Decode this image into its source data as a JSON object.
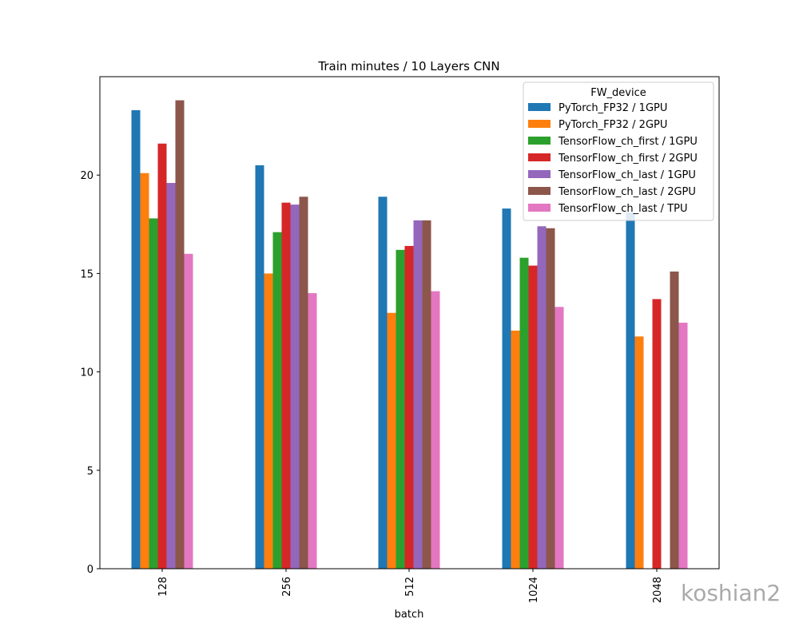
{
  "chart_data": {
    "type": "bar",
    "title": "Train minutes / 10 Layers CNN",
    "xlabel": "batch",
    "ylabel": "",
    "categories": [
      "128",
      "256",
      "512",
      "1024",
      "2048"
    ],
    "ylim": [
      0,
      25
    ],
    "yticks": [
      0,
      5,
      10,
      15,
      20
    ],
    "grid": false,
    "legend_title": "FW_device",
    "legend_position": "top-right",
    "series": [
      {
        "name": "PyTorch_FP32 / 1GPU",
        "color": "#1f77b4",
        "values": [
          23.3,
          20.5,
          18.9,
          18.3,
          18.1
        ]
      },
      {
        "name": "PyTorch_FP32 / 2GPU",
        "color": "#ff7f0e",
        "values": [
          20.1,
          15.0,
          13.0,
          12.1,
          11.8
        ]
      },
      {
        "name": "TensorFlow_ch_first / 1GPU",
        "color": "#2ca02c",
        "values": [
          17.8,
          17.1,
          16.2,
          15.8,
          null
        ]
      },
      {
        "name": "TensorFlow_ch_first / 2GPU",
        "color": "#d62728",
        "values": [
          21.6,
          18.6,
          16.4,
          15.4,
          13.7
        ]
      },
      {
        "name": "TensorFlow_ch_last / 1GPU",
        "color": "#9467bd",
        "values": [
          19.6,
          18.5,
          17.7,
          17.4,
          null
        ]
      },
      {
        "name": "TensorFlow_ch_last / 2GPU",
        "color": "#8c564b",
        "values": [
          23.8,
          18.9,
          17.7,
          17.3,
          15.1
        ]
      },
      {
        "name": "TensorFlow_ch_last / TPU",
        "color": "#e377c2",
        "values": [
          16.0,
          14.0,
          14.1,
          13.3,
          12.5
        ]
      }
    ]
  },
  "watermark": "koshian2"
}
